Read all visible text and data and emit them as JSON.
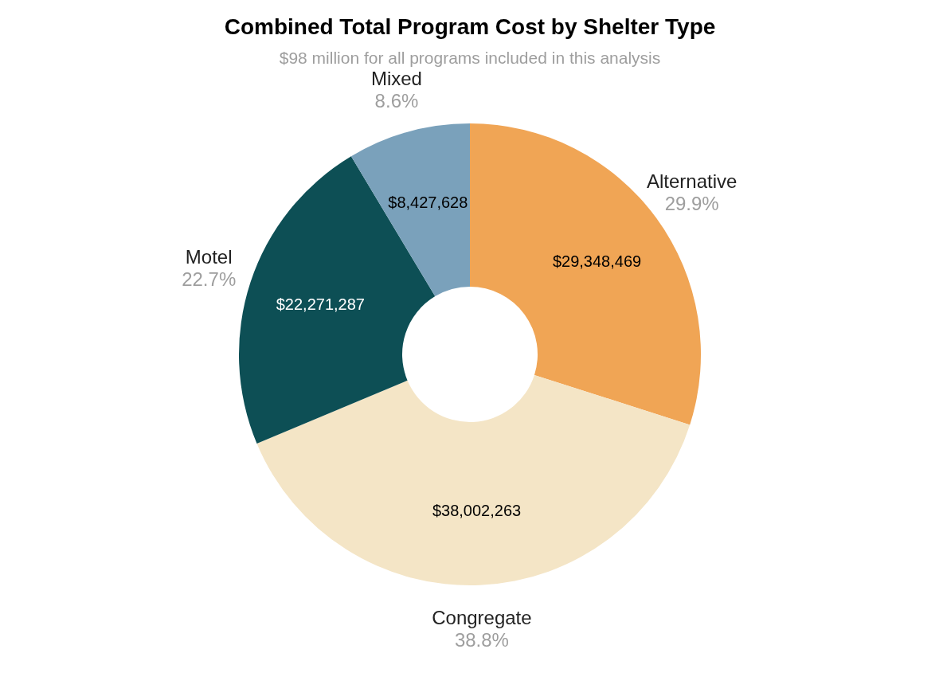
{
  "chart_data": {
    "type": "donut",
    "title": "Combined Total Program Cost by Shelter Type",
    "subtitle": "$98 million for all programs included in this analysis",
    "categories": [
      "Alternative",
      "Congregate",
      "Motel",
      "Mixed"
    ],
    "values": [
      29348469,
      38002263,
      22271287,
      8427628
    ],
    "colors": [
      "#f0a555",
      "#f4e5c6",
      "#0d4f55",
      "#7aa1bb"
    ],
    "value_labels": [
      "$29,348,469",
      "$38,002,263",
      "$22,271,287",
      "$8,427,628"
    ],
    "annotations": [
      "29.9%",
      "38.8%",
      "22.7%",
      "8.6%"
    ],
    "legend": false
  }
}
